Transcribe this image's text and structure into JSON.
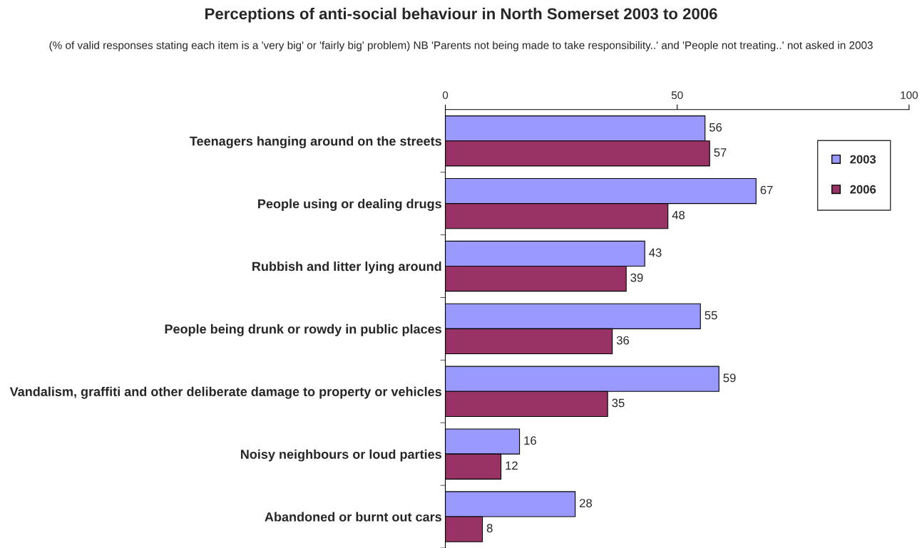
{
  "chart_data": {
    "type": "bar",
    "orientation": "horizontal",
    "title": "Perceptions of anti-social behaviour in North Somerset 2003 to 2006",
    "subtitle": "(% of valid responses stating each item is a 'very big' or 'fairly big' problem) NB 'Parents not being made to take responsibility..' and 'People not treating..' not asked in 2003",
    "categories": [
      "Teenagers hanging around on the streets",
      "People using or dealing drugs",
      "Rubbish and litter lying around",
      "People being drunk or rowdy in public places",
      "Vandalism, graffiti and other deliberate damage to property or vehicles",
      "Noisy neighbours or loud parties",
      "Abandoned or burnt out cars"
    ],
    "series": [
      {
        "name": "2003",
        "color": "#9999ff",
        "values": [
          56,
          67,
          43,
          55,
          59,
          16,
          28
        ]
      },
      {
        "name": "2006",
        "color": "#993366",
        "values": [
          57,
          48,
          39,
          36,
          35,
          12,
          8
        ]
      }
    ],
    "xlim": [
      0,
      100
    ],
    "xticks": [
      0,
      50,
      100
    ],
    "data_labels": true,
    "legend": "right",
    "grid": false
  }
}
